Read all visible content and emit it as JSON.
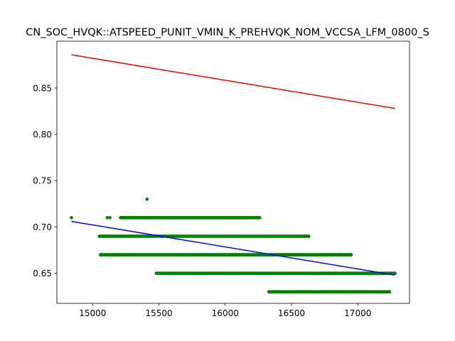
{
  "chart_data": {
    "type": "scatter",
    "title": "CN_SOC_HVQK::ATSPEED_PUNIT_VMIN_K_PREHVQK_NOM_VCCSA_LFM_0800_S",
    "xlabel": "",
    "ylabel": "",
    "xlim": [
      14730,
      17390
    ],
    "ylim": [
      0.6175,
      0.9006
    ],
    "x_ticks": [
      "15000",
      "15500",
      "16000",
      "16500",
      "17000"
    ],
    "y_ticks": [
      "0.65",
      "0.70",
      "0.75",
      "0.80",
      "0.85"
    ],
    "x_tick_values": [
      15000,
      15500,
      16000,
      16500,
      17000
    ],
    "y_tick_values": [
      0.65,
      0.7,
      0.75,
      0.8,
      0.85
    ],
    "grid": false,
    "colors": {
      "points": "#008000",
      "upper_line": "#ff0000",
      "fit_line": "#0000ff"
    },
    "series": [
      {
        "kind": "points",
        "bands": [
          {
            "y": 0.71,
            "x_min": 15210,
            "x_max": 16260,
            "sparse": [
              14840,
              15110,
              15130,
              15230,
              15280,
              16100,
              16160,
              16240
            ]
          },
          {
            "y": 0.69,
            "x_min": 15050,
            "x_max": 16630,
            "sparse": [
              15050,
              15080,
              15110,
              16600,
              16630
            ]
          },
          {
            "y": 0.67,
            "x_min": 15060,
            "x_max": 16950,
            "sparse": [
              15060,
              15130,
              15170,
              15230,
              15270,
              16870,
              16950
            ]
          },
          {
            "y": 0.65,
            "x_min": 15480,
            "x_max": 17280,
            "sparse": [
              15480,
              15570,
              15590,
              15680,
              17100,
              17130,
              17200,
              17280
            ]
          },
          {
            "y": 0.63,
            "x_min": 16330,
            "x_max": 17240,
            "sparse": [
              16330,
              16390,
              16460,
              16490,
              16540,
              16580,
              16610,
              16640,
              16740,
              16770,
              16790,
              16830,
              16850,
              16870,
              17030,
              17100,
              17240
            ]
          }
        ],
        "outliers": [
          {
            "x": 15410,
            "y": 0.73
          }
        ]
      },
      {
        "kind": "line",
        "x": [
          14840,
          17280
        ],
        "y": [
          0.886,
          0.828
        ]
      },
      {
        "kind": "line",
        "x": [
          14840,
          17280
        ],
        "y": [
          0.706,
          0.648
        ]
      }
    ]
  }
}
